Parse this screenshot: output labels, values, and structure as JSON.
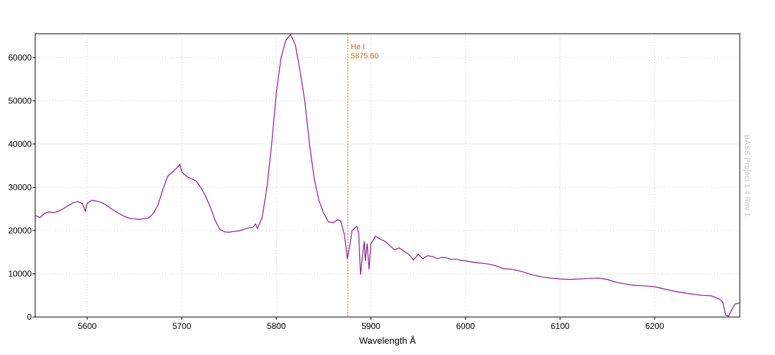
{
  "chart_data": {
    "type": "line",
    "title": "",
    "xlabel": "Wavelength Å",
    "ylabel": "",
    "xlim": [
      5545,
      6290
    ],
    "ylim": [
      0,
      65500
    ],
    "x_ticks": [
      5600,
      5700,
      5800,
      5900,
      6000,
      6100,
      6200
    ],
    "y_ticks": [
      0,
      10000,
      20000,
      30000,
      40000,
      50000,
      60000
    ],
    "grid": true,
    "legend": "none",
    "series": [
      {
        "color": "#8b1a8b",
        "points": [
          [
            5545,
            23500
          ],
          [
            5550,
            23000
          ],
          [
            5555,
            24000
          ],
          [
            5560,
            24300
          ],
          [
            5565,
            24100
          ],
          [
            5570,
            24500
          ],
          [
            5575,
            25100
          ],
          [
            5580,
            25800
          ],
          [
            5585,
            26400
          ],
          [
            5590,
            26700
          ],
          [
            5595,
            26200
          ],
          [
            5598,
            24500
          ],
          [
            5600,
            26300
          ],
          [
            5605,
            27000
          ],
          [
            5610,
            26800
          ],
          [
            5615,
            26500
          ],
          [
            5620,
            25900
          ],
          [
            5625,
            25100
          ],
          [
            5630,
            24400
          ],
          [
            5635,
            23800
          ],
          [
            5640,
            23200
          ],
          [
            5645,
            22800
          ],
          [
            5650,
            22700
          ],
          [
            5655,
            22600
          ],
          [
            5660,
            22700
          ],
          [
            5665,
            22900
          ],
          [
            5670,
            24000
          ],
          [
            5675,
            26000
          ],
          [
            5680,
            29500
          ],
          [
            5685,
            32500
          ],
          [
            5690,
            33500
          ],
          [
            5695,
            34500
          ],
          [
            5698,
            35300
          ],
          [
            5700,
            33500
          ],
          [
            5705,
            32500
          ],
          [
            5710,
            32000
          ],
          [
            5715,
            31500
          ],
          [
            5720,
            30000
          ],
          [
            5725,
            28000
          ],
          [
            5730,
            25500
          ],
          [
            5735,
            22500
          ],
          [
            5740,
            20300
          ],
          [
            5745,
            19700
          ],
          [
            5750,
            19600
          ],
          [
            5755,
            19800
          ],
          [
            5760,
            19900
          ],
          [
            5765,
            20200
          ],
          [
            5770,
            20600
          ],
          [
            5775,
            20700
          ],
          [
            5778,
            21500
          ],
          [
            5780,
            20500
          ],
          [
            5785,
            23000
          ],
          [
            5790,
            30000
          ],
          [
            5795,
            40000
          ],
          [
            5800,
            52000
          ],
          [
            5805,
            60000
          ],
          [
            5810,
            64000
          ],
          [
            5815,
            65300
          ],
          [
            5820,
            63000
          ],
          [
            5825,
            57000
          ],
          [
            5830,
            50000
          ],
          [
            5835,
            40000
          ],
          [
            5840,
            32000
          ],
          [
            5845,
            27000
          ],
          [
            5850,
            24000
          ],
          [
            5855,
            22000
          ],
          [
            5860,
            21800
          ],
          [
            5865,
            22500
          ],
          [
            5868,
            22200
          ],
          [
            5872,
            19000
          ],
          [
            5875,
            13500
          ],
          [
            5878,
            17000
          ],
          [
            5880,
            20000
          ],
          [
            5885,
            21000
          ],
          [
            5887,
            19500
          ],
          [
            5889,
            9800
          ],
          [
            5891,
            14000
          ],
          [
            5893,
            17500
          ],
          [
            5894,
            13000
          ],
          [
            5896,
            17000
          ],
          [
            5898,
            11000
          ],
          [
            5900,
            17000
          ],
          [
            5905,
            18700
          ],
          [
            5910,
            18000
          ],
          [
            5915,
            17500
          ],
          [
            5920,
            16500
          ],
          [
            5925,
            15500
          ],
          [
            5930,
            16000
          ],
          [
            5935,
            15200
          ],
          [
            5940,
            14500
          ],
          [
            5945,
            13200
          ],
          [
            5950,
            14500
          ],
          [
            5955,
            13500
          ],
          [
            5960,
            14200
          ],
          [
            5965,
            14000
          ],
          [
            5970,
            13500
          ],
          [
            5975,
            13800
          ],
          [
            5980,
            13700
          ],
          [
            5985,
            13300
          ],
          [
            5990,
            13400
          ],
          [
            5995,
            13100
          ],
          [
            6000,
            13000
          ],
          [
            6010,
            12600
          ],
          [
            6020,
            12400
          ],
          [
            6030,
            12000
          ],
          [
            6040,
            11200
          ],
          [
            6050,
            11000
          ],
          [
            6060,
            10500
          ],
          [
            6070,
            9800
          ],
          [
            6080,
            9300
          ],
          [
            6090,
            9000
          ],
          [
            6100,
            8800
          ],
          [
            6110,
            8700
          ],
          [
            6120,
            8800
          ],
          [
            6130,
            8900
          ],
          [
            6140,
            9000
          ],
          [
            6150,
            8700
          ],
          [
            6160,
            8000
          ],
          [
            6170,
            7600
          ],
          [
            6180,
            7300
          ],
          [
            6190,
            7200
          ],
          [
            6200,
            7000
          ],
          [
            6210,
            6500
          ],
          [
            6220,
            6000
          ],
          [
            6230,
            5600
          ],
          [
            6240,
            5300
          ],
          [
            6250,
            5000
          ],
          [
            6260,
            4900
          ],
          [
            6268,
            4200
          ],
          [
            6272,
            3500
          ],
          [
            6275,
            500
          ],
          [
            6278,
            200
          ],
          [
            6281,
            1500
          ],
          [
            6285,
            3000
          ],
          [
            6290,
            3300
          ]
        ]
      }
    ],
    "annotations": [
      {
        "type": "vline",
        "x": 5875.6,
        "color": "#d2691e",
        "label_name": "He I",
        "label_value": "5875.60"
      }
    ],
    "watermark": "BASS Project 1.4 Rev 1"
  }
}
